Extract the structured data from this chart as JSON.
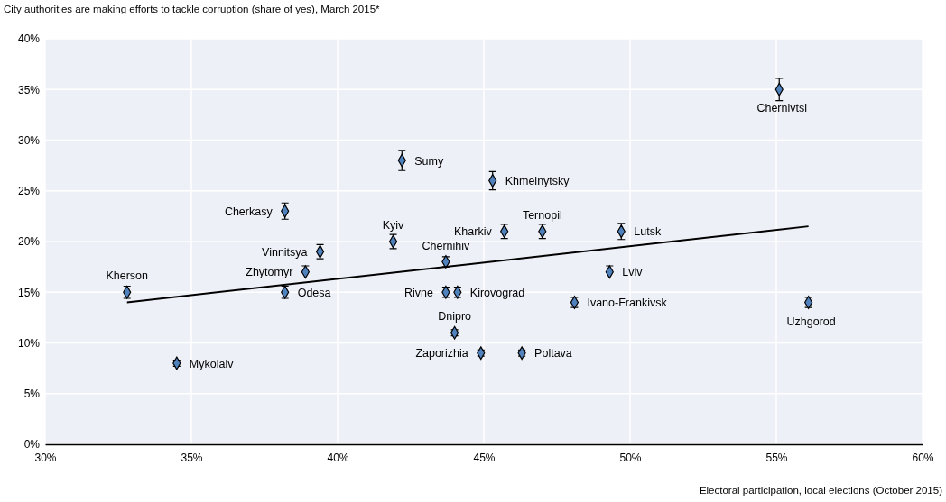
{
  "chart_data": {
    "type": "scatter",
    "ylabel": "City authorities are making efforts to tackle corruption (share of yes), March 2015*",
    "xlabel": "Electoral participation, local elections (October 2015)",
    "xlim": [
      30,
      60
    ],
    "xticks": [
      {
        "value": 30,
        "label": "30%"
      },
      {
        "value": 35,
        "label": "35%"
      },
      {
        "value": 40,
        "label": "40%"
      },
      {
        "value": 45,
        "label": "45%"
      },
      {
        "value": 50,
        "label": "50%"
      },
      {
        "value": 55,
        "label": "55%"
      },
      {
        "value": 60,
        "label": "60%"
      }
    ],
    "ylim": [
      0,
      40
    ],
    "yticks": [
      {
        "value": 0,
        "label": "0%"
      },
      {
        "value": 5,
        "label": "5%"
      },
      {
        "value": 10,
        "label": "10%"
      },
      {
        "value": 15,
        "label": "15%"
      },
      {
        "value": 20,
        "label": "20%"
      },
      {
        "value": 25,
        "label": "25%"
      },
      {
        "value": 30,
        "label": "30%"
      },
      {
        "value": 35,
        "label": "35%"
      },
      {
        "value": 40,
        "label": "40%"
      }
    ],
    "grid": true,
    "marker": "diamond",
    "series": [
      {
        "color": "#4f81bd",
        "x": [
          32.8,
          34.5,
          38.2,
          38.2,
          38.9,
          39.4,
          41.9,
          42.2,
          43.7,
          43.7,
          44.1,
          44.0,
          44.9,
          45.3,
          45.7,
          47.0,
          49.7,
          49.3,
          48.1,
          46.3,
          56.1,
          55.1
        ],
        "values": [
          15,
          8,
          23,
          15,
          17,
          19,
          20,
          28,
          18,
          15,
          15,
          11,
          9,
          26,
          21,
          21,
          21,
          17,
          14,
          9,
          14,
          35
        ],
        "errors": [
          0.6,
          0.3,
          0.8,
          0.6,
          0.6,
          0.7,
          0.7,
          1.0,
          0.5,
          0.5,
          0.5,
          0.3,
          0.3,
          0.9,
          0.7,
          0.7,
          0.8,
          0.6,
          0.5,
          0.3,
          0.5,
          1.1
        ]
      },
      {
        "type": "line",
        "marker": "none",
        "color": "#000000",
        "x": [
          32.8,
          56.1
        ],
        "values": [
          14.0,
          21.5
        ]
      }
    ],
    "annotations": [
      {
        "text": "Kherson",
        "x": 32.8,
        "y": 15
      },
      {
        "text": "Mykolaiv",
        "x": 34.5,
        "y": 8
      },
      {
        "text": "Cherkasy",
        "x": 38.2,
        "y": 23
      },
      {
        "text": "Odesa",
        "x": 38.2,
        "y": 15
      },
      {
        "text": "Zhytomyr",
        "x": 38.9,
        "y": 17
      },
      {
        "text": "Vinnitsya",
        "x": 39.4,
        "y": 19
      },
      {
        "text": "Kyiv",
        "x": 41.9,
        "y": 20
      },
      {
        "text": "Sumy",
        "x": 42.2,
        "y": 28
      },
      {
        "text": "Chernihiv",
        "x": 43.7,
        "y": 18
      },
      {
        "text": "Rivne",
        "x": 43.7,
        "y": 15
      },
      {
        "text": "Kirovograd",
        "x": 44.1,
        "y": 15
      },
      {
        "text": "Dnipro",
        "x": 44.0,
        "y": 11
      },
      {
        "text": "Zaporizhia",
        "x": 44.9,
        "y": 9
      },
      {
        "text": "Khmelnytsky",
        "x": 45.3,
        "y": 26
      },
      {
        "text": "Kharkiv",
        "x": 45.7,
        "y": 21
      },
      {
        "text": "Ternopil",
        "x": 47.0,
        "y": 21
      },
      {
        "text": "Lutsk",
        "x": 49.7,
        "y": 21
      },
      {
        "text": "Lviv",
        "x": 49.3,
        "y": 17
      },
      {
        "text": "Ivano-Frankivsk",
        "x": 48.1,
        "y": 14
      },
      {
        "text": "Poltava",
        "x": 46.3,
        "y": 9
      },
      {
        "text": "Uzhgorod",
        "x": 56.1,
        "y": 14
      },
      {
        "text": "Chernivtsi",
        "x": 55.1,
        "y": 35
      }
    ]
  }
}
